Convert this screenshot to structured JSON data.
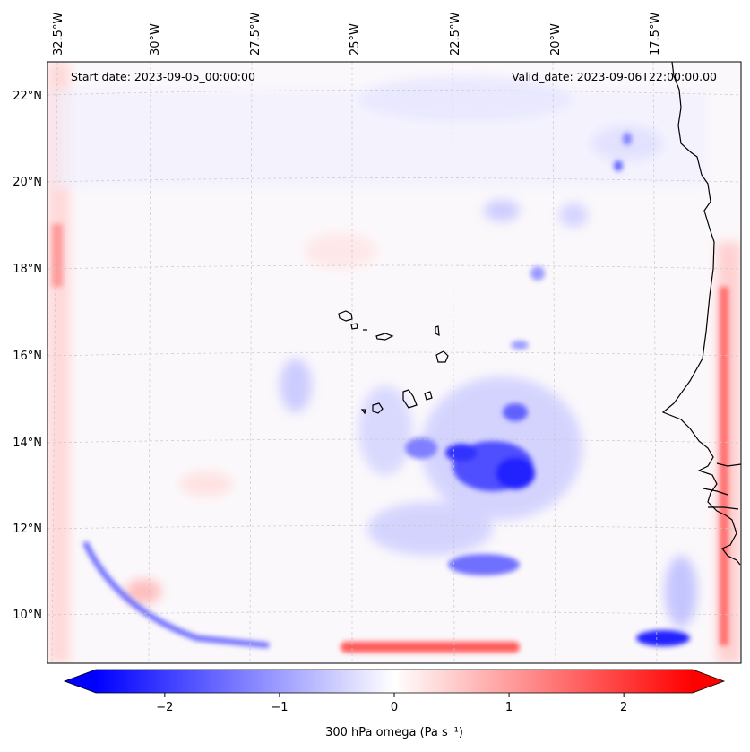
{
  "map": {
    "start_date": "Start date: 2023-09-05_00:00:00",
    "valid_date": "Valid_date: 2023-09-06T22:00:00.00",
    "lon_labels": [
      "32.5°W",
      "30°W",
      "27.5°W",
      "25°W",
      "22.5°W",
      "20°W",
      "17.5°W"
    ],
    "lat_labels": [
      "22°N",
      "20°N",
      "18°N",
      "16°N",
      "14°N",
      "12°N",
      "10°N"
    ]
  },
  "colorbar": {
    "label": "300 hPa omega (Pa s⁻¹)",
    "ticks": [
      "−2",
      "−1",
      "0",
      "1",
      "2"
    ],
    "tick_values": [
      -2,
      -1,
      0,
      1,
      2
    ],
    "vmin": -2.6,
    "vmax": 2.6,
    "cmap": "bwr",
    "color_neg": "#0000ff",
    "color_mid": "#ffffff",
    "color_pos": "#ff0000"
  },
  "colors": {
    "coastline": "#000000",
    "grid": "#c8c8c8",
    "field_blue": "#3a3aff",
    "field_red": "#ff3a3a"
  }
}
